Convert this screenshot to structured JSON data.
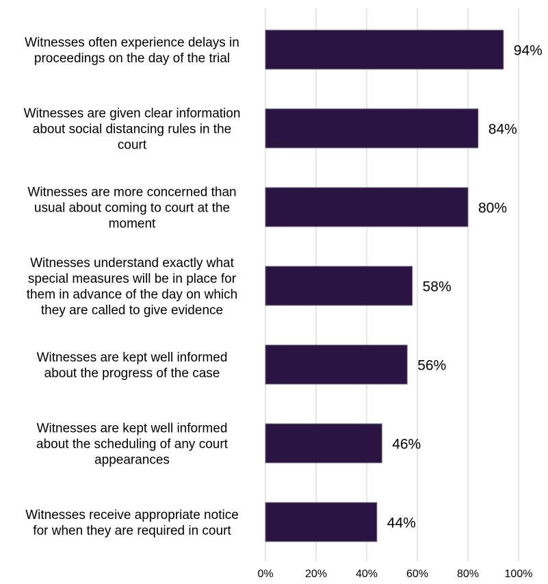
{
  "chart_data": {
    "type": "bar",
    "orientation": "horizontal",
    "categories": [
      [
        "Witnesses often experience delays in",
        "proceedings on the day of the trial"
      ],
      [
        "Witnesses are given clear information",
        "about social distancing rules in the",
        "court"
      ],
      [
        "Witnesses are more concerned than",
        "usual about coming to court at the",
        "moment"
      ],
      [
        "Witnesses understand exactly what",
        "special measures will be in place for",
        "them in advance of the day on which",
        "they are called to give evidence"
      ],
      [
        "Witnesses are kept well informed",
        "about the progress of the case"
      ],
      [
        "Witnesses are kept well informed",
        "about the scheduling of any court",
        "appearances"
      ],
      [
        "Witnesses receive appropriate notice",
        "for when they are required in court"
      ]
    ],
    "values": [
      94,
      84,
      80,
      58,
      56,
      46,
      44
    ],
    "data_labels": [
      "94%",
      "84%",
      "80%",
      "58%",
      "56%",
      "46%",
      "44%"
    ],
    "xlim": [
      0,
      100
    ],
    "x_ticks": [
      0,
      20,
      40,
      60,
      80,
      100
    ],
    "x_tick_labels": [
      "0%",
      "20%",
      "40%",
      "60%",
      "80%",
      "100%"
    ],
    "grid": true,
    "legend": "none",
    "bar_color": "#2a1441",
    "grid_color": "#d9d9d9"
  }
}
